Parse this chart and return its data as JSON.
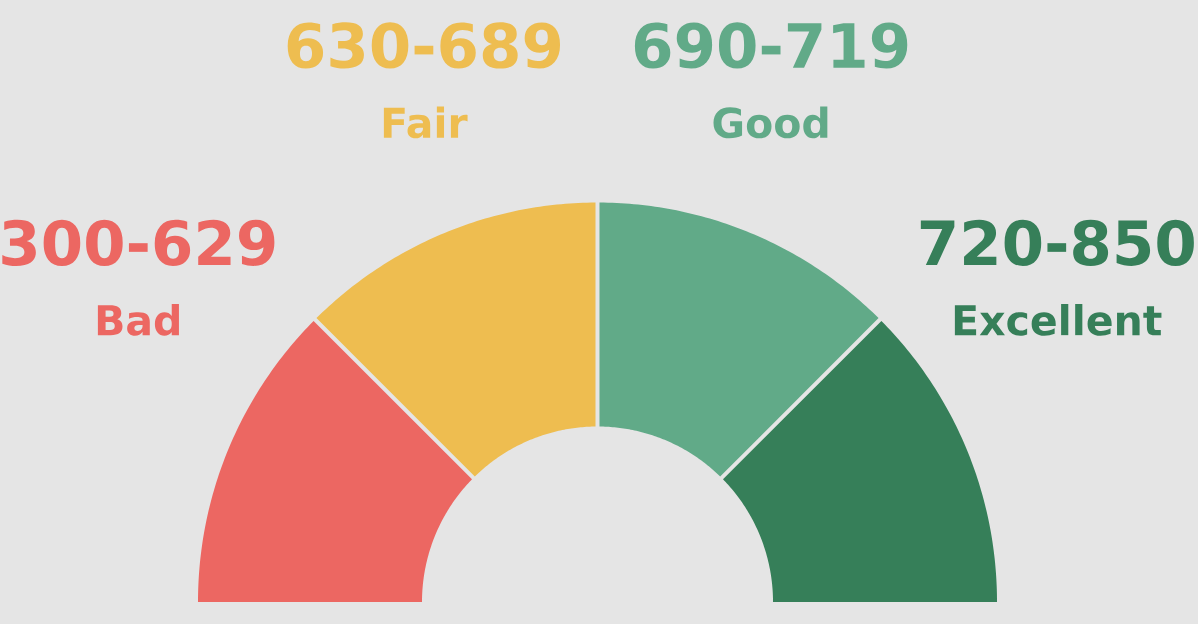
{
  "chart_data": {
    "type": "donut",
    "categories": [
      "Bad",
      "Fair",
      "Good",
      "Excellent"
    ],
    "values": [
      25,
      25,
      25,
      25
    ],
    "colors": [
      "#ec6762",
      "#eebd50",
      "#61aa88",
      "#367f59"
    ],
    "value_labels": [
      "300-629",
      "630-689",
      "690-719",
      "720-850"
    ]
  }
}
